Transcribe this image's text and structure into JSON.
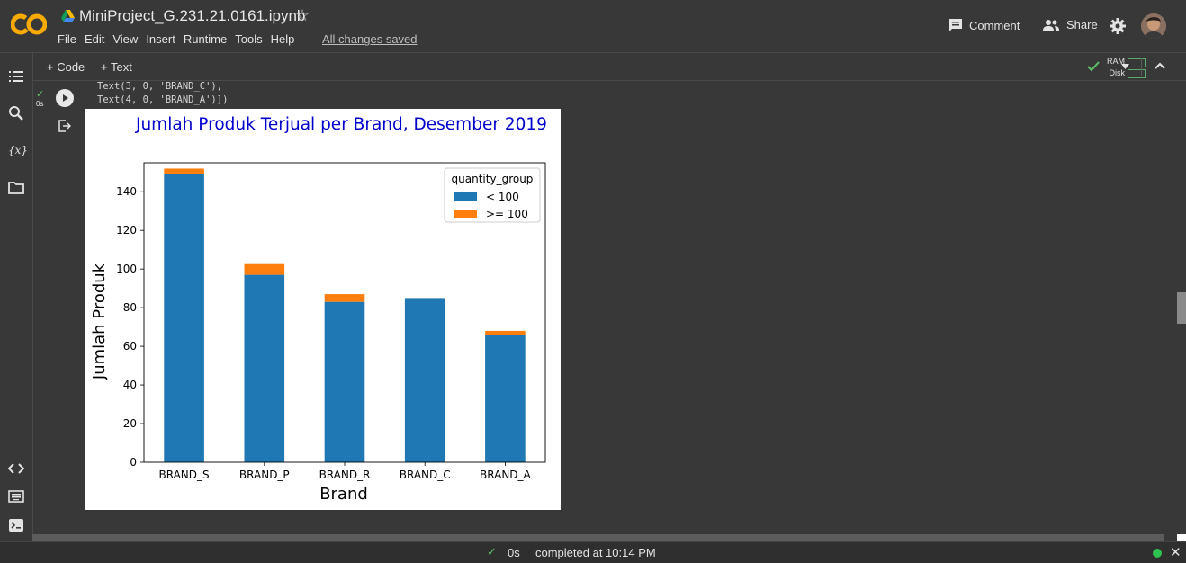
{
  "header": {
    "logo_text": "CO",
    "filename": "MiniProject_G.231.21.0161.ipynb",
    "menu": [
      "File",
      "Edit",
      "View",
      "Insert",
      "Runtime",
      "Tools",
      "Help"
    ],
    "save_status": "All changes saved",
    "comment_label": "Comment",
    "share_label": "Share"
  },
  "toolbar": {
    "add_code": "+ Code",
    "add_text": "+ Text",
    "ram_label": "RAM",
    "disk_label": "Disk"
  },
  "cell": {
    "exec_time": "0s",
    "output_lines": [
      "Text(3, 0, 'BRAND_C'),",
      "Text(4, 0, 'BRAND_A')])"
    ]
  },
  "chart_data": {
    "type": "bar",
    "stacked": true,
    "title": "Jumlah Produk Terjual per Brand, Desember 2019",
    "xlabel": "Brand",
    "ylabel": "Jumlah Produk",
    "categories": [
      "BRAND_S",
      "BRAND_P",
      "BRAND_R",
      "BRAND_C",
      "BRAND_A"
    ],
    "series": [
      {
        "name": "< 100",
        "values": [
          149,
          97,
          83,
          85,
          66
        ],
        "color": "#1f77b4"
      },
      {
        "name": ">= 100",
        "values": [
          3,
          6,
          4,
          0,
          2
        ],
        "color": "#ff7f0e"
      }
    ],
    "legend_title": "quantity_group",
    "legend_position": "top-right",
    "ylim": [
      0,
      155
    ],
    "yticks": [
      0,
      20,
      40,
      60,
      80,
      100,
      120,
      140
    ],
    "title_color": "#0000cd",
    "grid": false
  },
  "statusbar": {
    "time": "0s",
    "message": "completed at 10:14 PM"
  }
}
